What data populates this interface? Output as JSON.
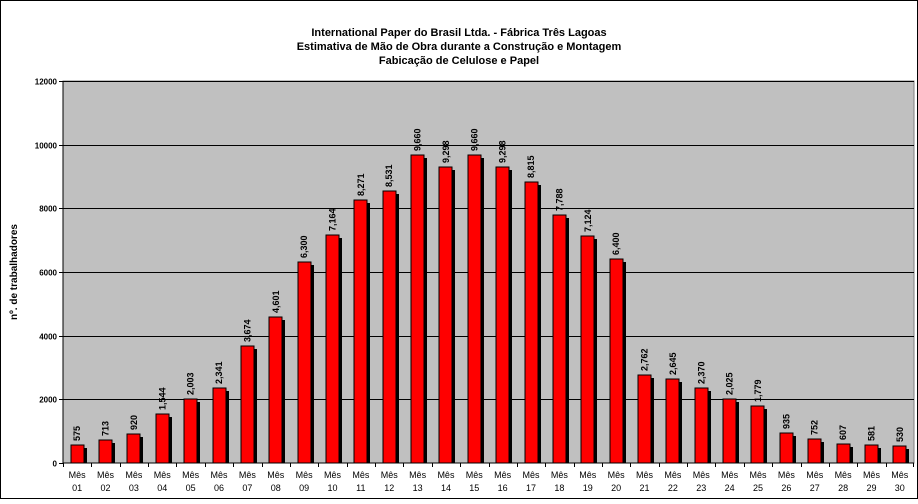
{
  "chart_data": {
    "type": "bar",
    "title_lines": [
      "International Paper do Brasil Ltda. - Fábrica Três Lagoas",
      "Estimativa de Mão de Obra durante a Construção e Montagem",
      "Fabicação de Celulose e Papel"
    ],
    "xlabel": "",
    "ylabel": "nº. de trabalhadores",
    "ylim": [
      0,
      12000
    ],
    "yticks": [
      0,
      2000,
      4000,
      6000,
      8000,
      10000,
      12000
    ],
    "grid": true,
    "legend": "none",
    "category_prefix": "Mês",
    "categories": [
      "01",
      "02",
      "03",
      "04",
      "05",
      "06",
      "07",
      "08",
      "09",
      "10",
      "11",
      "12",
      "13",
      "14",
      "15",
      "16",
      "17",
      "18",
      "19",
      "20",
      "21",
      "22",
      "23",
      "24",
      "25",
      "26",
      "27",
      "28",
      "29",
      "30"
    ],
    "values": [
      575,
      713,
      920,
      1544,
      2003,
      2341,
      3674,
      4601,
      6300,
      7164,
      8271,
      8531,
      9660,
      9298,
      9660,
      9298,
      8815,
      7788,
      7124,
      6400,
      2762,
      2645,
      2370,
      2025,
      1779,
      935,
      752,
      607,
      581,
      530
    ],
    "value_labels": [
      "575",
      "713",
      "920",
      "1,544",
      "2,003",
      "2,341",
      "3,674",
      "4,601",
      "6,300",
      "7,164",
      "8,271",
      "8,531",
      "9,660",
      "9,298",
      "9,660",
      "9,298",
      "8,815",
      "7,788",
      "7,124",
      "6,400",
      "2,762",
      "2,645",
      "2,370",
      "2,025",
      "1,779",
      "935",
      "752",
      "607",
      "581",
      "530"
    ],
    "colors": {
      "bar": "#ff0000",
      "bar_edge": "#000000",
      "bar_shadow": "#000000",
      "plot_bg": "#c0c0c0",
      "gridline": "#000000"
    }
  }
}
